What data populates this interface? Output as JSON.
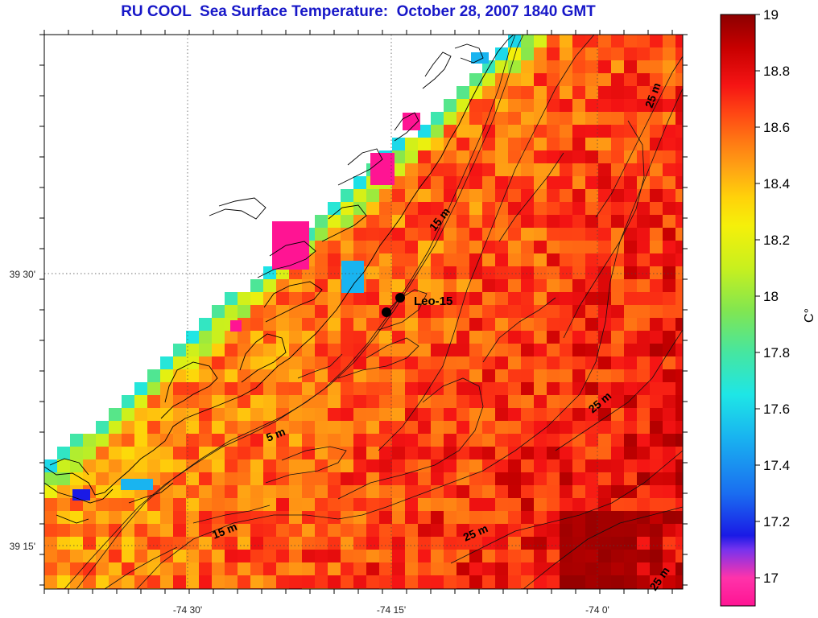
{
  "title": "RU COOL  Sea Surface Temperature:  October 28, 2007 1840 GMT",
  "latitude_labels": [
    {
      "text": "39 30'",
      "lat": 39.5
    },
    {
      "text": "39 15'",
      "lat": 39.25
    }
  ],
  "longitude_labels": [
    {
      "text": "-74 30'",
      "lon": -74.5
    },
    {
      "text": "-74 15'",
      "lon": -74.25
    },
    {
      "text": "-74 0'",
      "lon": -74.0
    }
  ],
  "station": {
    "label": "Leo-15"
  },
  "isobath_labels": [
    "5 m",
    "15 m",
    "15 m",
    "25 m",
    "25 m",
    "25 m",
    "25 m"
  ],
  "colorbar": {
    "unit_label": "C°",
    "min": 16.9,
    "max": 19.0,
    "ticks": [
      "17",
      "17.2",
      "17.4",
      "17.6",
      "17.8",
      "18",
      "18.2",
      "18.4",
      "18.6",
      "18.8",
      "19"
    ],
    "tick_values": [
      17,
      17.2,
      17.4,
      17.6,
      17.8,
      18,
      18.2,
      18.4,
      18.6,
      18.8,
      19
    ],
    "colors": [
      "#ff1493",
      "#ff33aa",
      "#7733ee",
      "#1a1ae6",
      "#1a6ef0",
      "#19b4f0",
      "#1ee6e6",
      "#46e6a0",
      "#82e650",
      "#c8f01e",
      "#f5f00a",
      "#ffd20a",
      "#ffa514",
      "#ff7814",
      "#ff4614",
      "#f51414",
      "#c80000",
      "#8c0000"
    ],
    "colors_stops": [
      16.9,
      17.0,
      17.1,
      17.15,
      17.3,
      17.5,
      17.65,
      17.8,
      17.95,
      18.1,
      18.25,
      18.35,
      18.45,
      18.55,
      18.65,
      18.75,
      18.88,
      19.0
    ]
  }
}
